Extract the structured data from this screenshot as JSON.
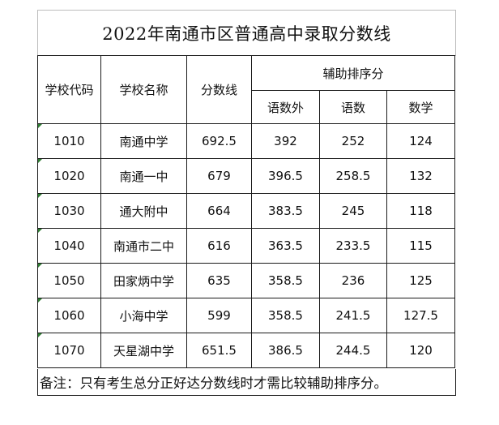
{
  "title": "2022年南通市区普通高中录取分数线",
  "headers": {
    "school_code": "学校代码",
    "school_name": "学校名称",
    "score_line": "分数线",
    "aux_group": "辅助排序分",
    "aux": [
      "语数外",
      "语数",
      "数学"
    ]
  },
  "rows": [
    {
      "code": "1010",
      "name": "南通中学",
      "score": "692.5",
      "ywsx": "392",
      "ys": "252",
      "sx": "124"
    },
    {
      "code": "1020",
      "name": "南通一中",
      "score": "679",
      "ywsx": "396.5",
      "ys": "258.5",
      "sx": "132"
    },
    {
      "code": "1030",
      "name": "通大附中",
      "score": "664",
      "ywsx": "383.5",
      "ys": "245",
      "sx": "118"
    },
    {
      "code": "1040",
      "name": "南通市二中",
      "score": "616",
      "ywsx": "363.5",
      "ys": "233.5",
      "sx": "115"
    },
    {
      "code": "1050",
      "name": "田家炳中学",
      "score": "635",
      "ywsx": "358.5",
      "ys": "236",
      "sx": "125"
    },
    {
      "code": "1060",
      "name": "小海中学",
      "score": "599",
      "ywsx": "358.5",
      "ys": "241.5",
      "sx": "127.5"
    },
    {
      "code": "1070",
      "name": "天星湖中学",
      "score": "651.5",
      "ywsx": "386.5",
      "ys": "244.5",
      "sx": "120"
    }
  ],
  "note": "备注：只有考生总分正好达分数线时才需比较辅助排序分。"
}
